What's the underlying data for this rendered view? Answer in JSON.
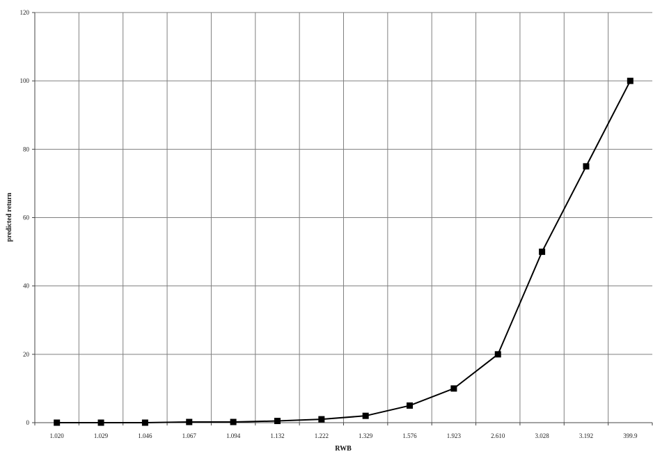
{
  "chart_data": {
    "type": "line",
    "xlabel": "RWB",
    "ylabel": "predicted return",
    "categories": [
      "1.020",
      "1.029",
      "1.046",
      "1.067",
      "1.094",
      "1.132",
      "1.222",
      "1.329",
      "1.576",
      "1.923",
      "2.610",
      "3.028",
      "3.192",
      "399.9"
    ],
    "series": [
      {
        "values": [
          0,
          0,
          0,
          0.2,
          0.2,
          0.5,
          1,
          2,
          5,
          10,
          20,
          50,
          75,
          100
        ]
      }
    ],
    "ylim": [
      0,
      120
    ],
    "yticks": [
      0,
      20,
      40,
      60,
      80,
      100,
      120
    ],
    "grid": true,
    "marker": "square",
    "colors": {
      "line": "#000000",
      "grid": "#7f7f7f",
      "axis": "#444444"
    }
  }
}
